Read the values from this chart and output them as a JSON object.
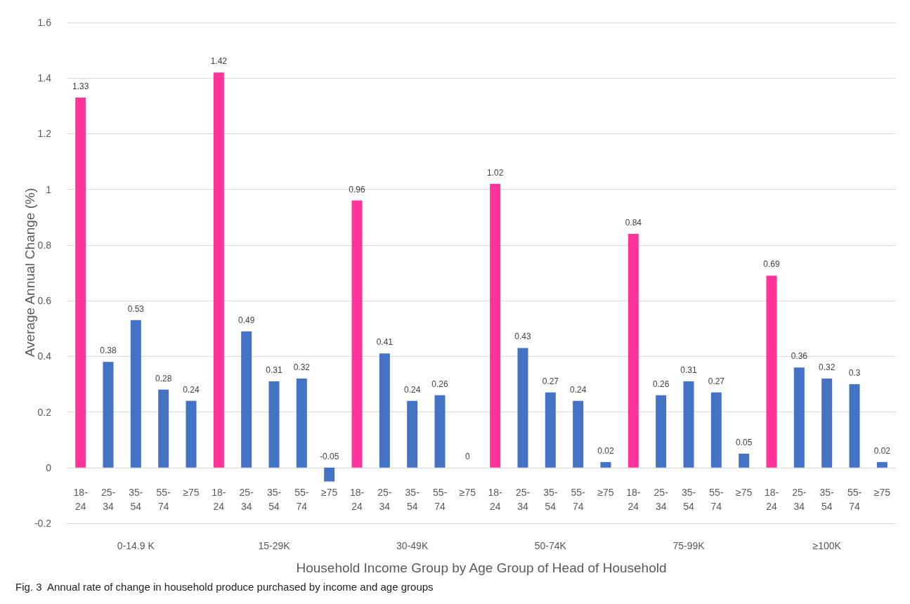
{
  "chart_data": {
    "type": "bar",
    "xlabel": "Household Income Group by Age Group of Head of Household",
    "ylabel": "Average Annual Change (%)",
    "categories": [
      "18-\n24",
      "25-\n34",
      "35-\n54",
      "55-\n74",
      "≥75",
      "18-\n24",
      "25-\n34",
      "35-\n54",
      "55-\n74",
      "≥75",
      "18-\n24",
      "25-\n34",
      "35-\n54",
      "55-\n74",
      "≥75",
      "18-\n24",
      "25-\n34",
      "35-\n54",
      "55-\n74",
      "≥75",
      "18-\n24",
      "25-\n34",
      "35-\n54",
      "55-\n74",
      "≥75",
      "18-\n24",
      "25-\n34",
      "35-\n54",
      "55-\n74",
      "≥75"
    ],
    "values": [
      1.33,
      0.38,
      0.53,
      0.28,
      0.24,
      1.42,
      0.49,
      0.31,
      0.32,
      -0.05,
      0.96,
      0.41,
      0.24,
      0.26,
      0,
      1.02,
      0.43,
      0.27,
      0.24,
      0.02,
      0.84,
      0.26,
      0.31,
      0.27,
      0.05,
      0.69,
      0.36,
      0.32,
      0.3,
      0.02
    ],
    "colors": [
      "#ff3399",
      "#4472c4",
      "#4472c4",
      "#4472c4",
      "#4472c4",
      "#ff3399",
      "#4472c4",
      "#4472c4",
      "#4472c4",
      "#4472c4",
      "#ff3399",
      "#4472c4",
      "#4472c4",
      "#4472c4",
      "#4472c4",
      "#ff3399",
      "#4472c4",
      "#4472c4",
      "#4472c4",
      "#4472c4",
      "#ff3399",
      "#4472c4",
      "#4472c4",
      "#4472c4",
      "#4472c4",
      "#ff3399",
      "#4472c4",
      "#4472c4",
      "#4472c4",
      "#4472c4"
    ],
    "data_labels": true,
    "ylim": [
      -0.2,
      1.6
    ],
    "yticks": [
      -0.2,
      0,
      0.2,
      0.4,
      0.6,
      0.8,
      1,
      1.2,
      1.4,
      1.6
    ],
    "grid": "y",
    "annotations": [
      "0-14.9 K",
      "15-29K",
      "30-49K",
      "50-74K",
      "75-99K",
      "≥100K",
      "Fig. 3  Annual rate of change in household produce purchased by income and age groups"
    ]
  }
}
